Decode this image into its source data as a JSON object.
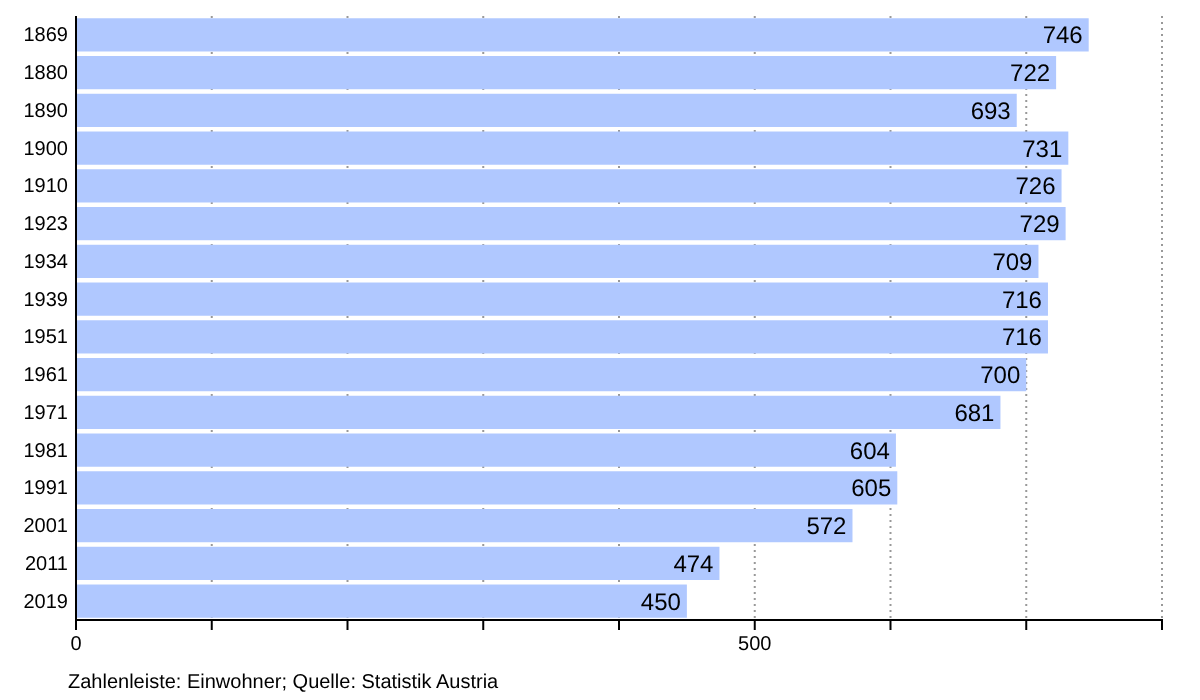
{
  "chart_data": {
    "type": "bar",
    "orientation": "horizontal",
    "categories": [
      "1869",
      "1880",
      "1890",
      "1900",
      "1910",
      "1923",
      "1934",
      "1939",
      "1951",
      "1961",
      "1971",
      "1981",
      "1991",
      "2001",
      "2011",
      "2019"
    ],
    "values": [
      746,
      722,
      693,
      731,
      726,
      729,
      709,
      716,
      716,
      700,
      681,
      604,
      605,
      572,
      474,
      450
    ],
    "color": "#b0c8ff",
    "data_labels": true,
    "grid": "x",
    "xlim": [
      0,
      800
    ],
    "xticks": [
      0,
      {
        "value": 100,
        "label": null
      },
      {
        "value": 200,
        "label": null
      },
      {
        "value": 300,
        "label": null
      },
      {
        "value": 400,
        "label": null
      },
      500,
      {
        "value": 600,
        "label": null
      },
      {
        "value": 700,
        "label": null
      },
      {
        "value": 800,
        "label": null
      }
    ],
    "annotations": [
      "Zahlenleiste: Einwohner; Quelle: Statistik Austria"
    ]
  }
}
